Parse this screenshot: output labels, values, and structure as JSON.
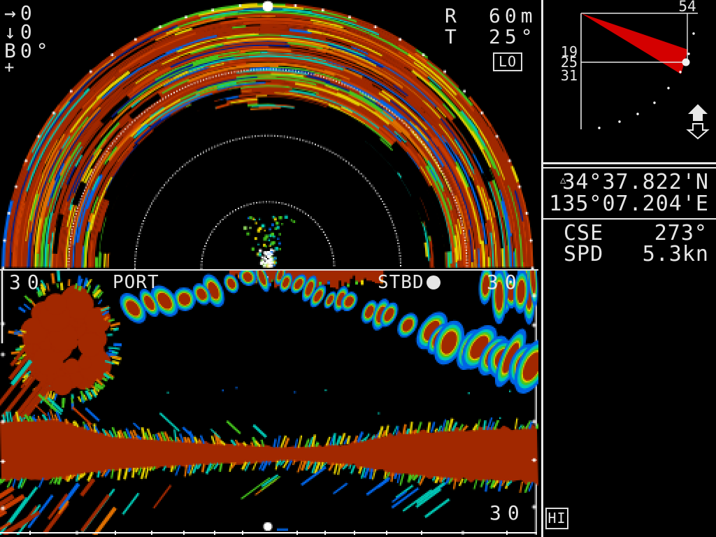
{
  "colors": {
    "background": "#000000",
    "text": "#e6e6e6",
    "border": "#ffffff",
    "wedge_red": "#d40000",
    "palette": {
      "dark_red": "#a12800",
      "red": "#c83c00",
      "orange": "#e07000",
      "yellow": "#e6d200",
      "green": "#46c81e",
      "cyan": "#00c8b4",
      "blue": "#0064e6",
      "navy": "#001e8c",
      "white": "#ffffff"
    }
  },
  "sonar_panel": {
    "cursor_readout": {
      "x_arrow": "→",
      "x_value": "0",
      "y_arrow": "↓",
      "y_value": "0",
      "bearing_label": "B",
      "bearing_value": "0°",
      "cursor_mark": "+"
    },
    "range_label": "R",
    "range_value": "60m",
    "tilt_label": "T",
    "tilt_value": "25°",
    "gain_badge": "LO"
  },
  "cross_section_panel": {
    "port_range": "30",
    "port_label": "PORT",
    "stbd_label": "STBD",
    "stbd_range": "30",
    "bottom_range": "30"
  },
  "beam_diagram": {
    "distance_value": "54",
    "tilt_upper": "19",
    "tilt_center": "25",
    "tilt_lower": "31"
  },
  "nav_data": {
    "position_mark": "△",
    "latitude": "34°37.822'N",
    "longitude": "135°07.204'E",
    "course_label": "CSE",
    "course_value": "273°",
    "speed_label": "SPD",
    "speed_value": "5.3kn"
  },
  "power_badge": "HI"
}
